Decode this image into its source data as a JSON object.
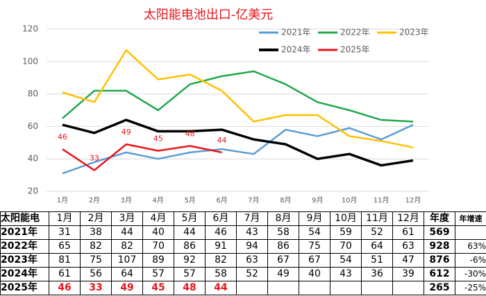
{
  "chart_data": {
    "type": "line",
    "title": "太阳能电池出口-亿美元",
    "categories": [
      "1月",
      "2月",
      "3月",
      "4月",
      "5月",
      "6月",
      "7月",
      "8月",
      "9月",
      "10月",
      "11月",
      "12月"
    ],
    "series": [
      {
        "name": "2021年",
        "color": "#5b9bd5",
        "values": [
          31,
          38,
          44,
          40,
          44,
          46,
          43,
          58,
          54,
          59,
          52,
          61
        ]
      },
      {
        "name": "2022年",
        "color": "#1fa84a",
        "values": [
          65,
          82,
          82,
          70,
          86,
          91,
          94,
          86,
          75,
          70,
          64,
          63
        ]
      },
      {
        "name": "2023年",
        "color": "#ffc000",
        "values": [
          81,
          75,
          107,
          89,
          92,
          82,
          63,
          67,
          67,
          54,
          51,
          47
        ]
      },
      {
        "name": "2024年",
        "color": "#000000",
        "values": [
          61,
          56,
          64,
          57,
          57,
          58,
          52,
          49,
          40,
          43,
          36,
          39
        ]
      },
      {
        "name": "2025年",
        "color": "#e8141b",
        "values": [
          46,
          33,
          49,
          45,
          48,
          44,
          null,
          null,
          null,
          null,
          null,
          null
        ],
        "data_labels": true
      }
    ],
    "ylim": [
      20,
      120
    ],
    "yticks": [
      20,
      40,
      60,
      80,
      100,
      120
    ],
    "grid": true,
    "legend": "top-right"
  },
  "table": {
    "header": [
      "太阳能电",
      "1月",
      "2月",
      "3月",
      "4月",
      "5月",
      "6月",
      "7月",
      "8月",
      "9月",
      "10月",
      "11月",
      "12月",
      "年度",
      "年增速"
    ],
    "rows": [
      [
        "2021年",
        31,
        38,
        44,
        40,
        44,
        46,
        43,
        58,
        54,
        59,
        52,
        61,
        569,
        null
      ],
      [
        "2022年",
        65,
        82,
        82,
        70,
        86,
        91,
        94,
        86,
        75,
        70,
        64,
        63,
        928,
        "63%"
      ],
      [
        "2023年",
        81,
        75,
        107,
        89,
        92,
        82,
        63,
        67,
        67,
        54,
        51,
        47,
        876,
        "-6%"
      ],
      [
        "2024年",
        61,
        56,
        64,
        57,
        57,
        58,
        52,
        49,
        40,
        43,
        36,
        39,
        612,
        "-30%"
      ],
      [
        "2025年",
        46,
        33,
        49,
        45,
        48,
        44,
        null,
        null,
        null,
        null,
        null,
        null,
        265,
        "-25%"
      ]
    ]
  }
}
